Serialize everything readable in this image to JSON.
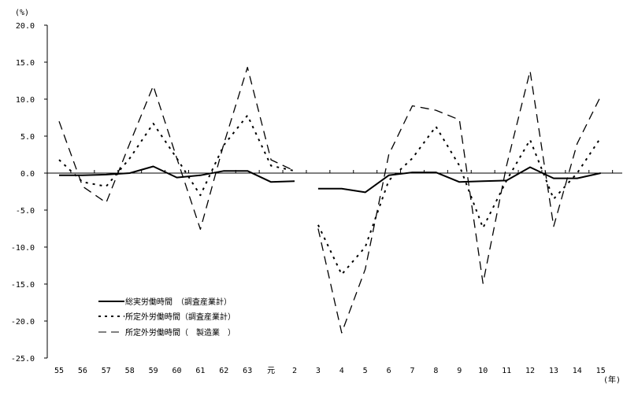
{
  "chart_data": {
    "type": "line",
    "ylabel": "(%)",
    "xlabel": "(年)",
    "ylim": [
      -25,
      20
    ],
    "yticks": [
      "20.0",
      "15.0",
      "10.0",
      "5.0",
      "0.0",
      "-5.0",
      "-10.0",
      "-15.0",
      "-20.0",
      "-25.0"
    ],
    "categories": [
      "55",
      "56",
      "57",
      "58",
      "59",
      "60",
      "61",
      "62",
      "63",
      "元",
      "2",
      "3",
      "4",
      "5",
      "6",
      "7",
      "8",
      "9",
      "10",
      "11",
      "12",
      "13",
      "14",
      "15"
    ],
    "series_break_after": "2",
    "grid": false,
    "legend_placement": "lower-left",
    "series": [
      {
        "name": "総実労働時間　（調査産業計）",
        "style": "solid",
        "values": [
          -0.3,
          -0.3,
          -0.2,
          0.0,
          0.9,
          -0.6,
          -0.3,
          0.3,
          0.3,
          -1.2,
          -1.1,
          -2.1,
          -2.1,
          -2.6,
          -0.3,
          0.1,
          0.1,
          -1.2,
          -1.1,
          -1.0,
          0.8,
          -0.7,
          -0.7,
          0.0
        ]
      },
      {
        "name": "所定外労働時間（調査産業計）",
        "style": "dotted",
        "values": [
          1.8,
          -1.2,
          -1.8,
          2.0,
          6.7,
          2.0,
          -3.0,
          3.8,
          7.8,
          1.0,
          0.3,
          -7.0,
          -13.7,
          -10.0,
          -1.0,
          2.0,
          6.3,
          1.0,
          -7.4,
          -1.0,
          4.5,
          -3.5,
          0.0,
          4.8
        ]
      },
      {
        "name": "所定外労働時間（　製造業　）",
        "style": "dashed",
        "values": [
          7.0,
          -1.8,
          -4.0,
          4.0,
          11.8,
          2.0,
          -7.6,
          4.0,
          14.3,
          1.8,
          0.3,
          -7.5,
          -21.6,
          -13.0,
          2.5,
          9.1,
          8.5,
          7.2,
          -14.9,
          1.0,
          13.8,
          -7.2,
          4.0,
          10.4
        ]
      }
    ]
  }
}
